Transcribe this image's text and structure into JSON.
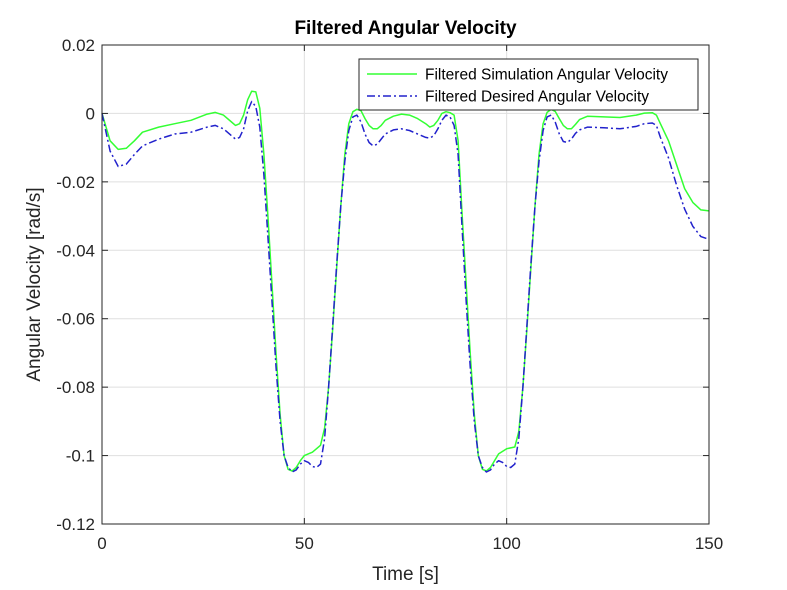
{
  "chart_data": {
    "type": "line",
    "title": "Filtered Angular Velocity",
    "xlabel": "Time [s]",
    "ylabel": "Angular Velocity [rad/s]",
    "xlim": [
      0,
      150
    ],
    "ylim": [
      -0.12,
      0.02
    ],
    "xticks": [
      0,
      50,
      100,
      150
    ],
    "xtick_labels": [
      "0",
      "50",
      "100",
      "150"
    ],
    "yticks": [
      0.02,
      0,
      -0.02,
      -0.04,
      -0.06,
      -0.08,
      -0.1,
      -0.12
    ],
    "ytick_labels": [
      "0.02",
      "0",
      "-0.02",
      "-0.04",
      "-0.06",
      "-0.08",
      "-0.1",
      "-0.12"
    ],
    "grid": true,
    "legend_position": "top-right",
    "series": [
      {
        "name": "Filtered Simulation Angular Velocity",
        "color": "#33ff33",
        "dash": "solid",
        "points": [
          [
            0,
            0
          ],
          [
            2,
            -0.008
          ],
          [
            4,
            -0.0105
          ],
          [
            6,
            -0.0102
          ],
          [
            8,
            -0.008
          ],
          [
            10,
            -0.0055
          ],
          [
            14,
            -0.004
          ],
          [
            18,
            -0.003
          ],
          [
            22,
            -0.002
          ],
          [
            26,
            -0.0002
          ],
          [
            28,
            0.0003
          ],
          [
            30,
            -0.0005
          ],
          [
            32,
            -0.0025
          ],
          [
            33,
            -0.0035
          ],
          [
            34,
            -0.003
          ],
          [
            35,
            -0.0005
          ],
          [
            36,
            0.004
          ],
          [
            37,
            0.0065
          ],
          [
            38,
            0.0063
          ],
          [
            39,
            0.0015
          ],
          [
            40,
            -0.012
          ],
          [
            41,
            -0.03
          ],
          [
            42,
            -0.05
          ],
          [
            43,
            -0.07
          ],
          [
            44,
            -0.088
          ],
          [
            45,
            -0.1
          ],
          [
            46,
            -0.104
          ],
          [
            47,
            -0.1045
          ],
          [
            48,
            -0.1035
          ],
          [
            49,
            -0.1015
          ],
          [
            50,
            -0.1
          ],
          [
            52,
            -0.099
          ],
          [
            54,
            -0.097
          ],
          [
            55,
            -0.092
          ],
          [
            56,
            -0.08
          ],
          [
            57,
            -0.063
          ],
          [
            58,
            -0.045
          ],
          [
            59,
            -0.027
          ],
          [
            60,
            -0.012
          ],
          [
            61,
            -0.003
          ],
          [
            62,
            0.0005
          ],
          [
            63,
            0.0012
          ],
          [
            64,
            0.0008
          ],
          [
            65,
            -0.0015
          ],
          [
            66,
            -0.0035
          ],
          [
            67,
            -0.0045
          ],
          [
            68,
            -0.0045
          ],
          [
            69,
            -0.0035
          ],
          [
            70,
            -0.002
          ],
          [
            72,
            -0.0008
          ],
          [
            74,
            -0.0002
          ],
          [
            76,
            -0.0005
          ],
          [
            78,
            -0.0015
          ],
          [
            80,
            -0.003
          ],
          [
            81,
            -0.004
          ],
          [
            82,
            -0.0035
          ],
          [
            83,
            -0.002
          ],
          [
            84,
            0.0
          ],
          [
            85,
            0.0005
          ],
          [
            86,
            0.0002
          ],
          [
            87,
            -0.0005
          ],
          [
            88,
            -0.008
          ],
          [
            89,
            -0.03
          ],
          [
            90,
            -0.05
          ],
          [
            91,
            -0.07
          ],
          [
            92,
            -0.088
          ],
          [
            93,
            -0.1
          ],
          [
            94,
            -0.104
          ],
          [
            95,
            -0.1045
          ],
          [
            96,
            -0.1035
          ],
          [
            97,
            -0.1015
          ],
          [
            98,
            -0.0995
          ],
          [
            100,
            -0.098
          ],
          [
            102,
            -0.0975
          ],
          [
            103,
            -0.093
          ],
          [
            104,
            -0.08
          ],
          [
            105,
            -0.063
          ],
          [
            106,
            -0.045
          ],
          [
            107,
            -0.027
          ],
          [
            108,
            -0.012
          ],
          [
            109,
            -0.003
          ],
          [
            110,
            0.0003
          ],
          [
            111,
            0.0012
          ],
          [
            112,
            0.0006
          ],
          [
            113,
            -0.0015
          ],
          [
            114,
            -0.0035
          ],
          [
            115,
            -0.0045
          ],
          [
            116,
            -0.0045
          ],
          [
            117,
            -0.0032
          ],
          [
            118,
            -0.0018
          ],
          [
            120,
            -0.0008
          ],
          [
            124,
            -0.001
          ],
          [
            128,
            -0.0012
          ],
          [
            132,
            -0.0005
          ],
          [
            134,
            0.0001
          ],
          [
            136,
            0.0002
          ],
          [
            137,
            -0.0005
          ],
          [
            138,
            -0.003
          ],
          [
            140,
            -0.008
          ],
          [
            142,
            -0.015
          ],
          [
            144,
            -0.022
          ],
          [
            146,
            -0.026
          ],
          [
            148,
            -0.0282
          ],
          [
            150,
            -0.0285
          ]
        ]
      },
      {
        "name": "Filtered Desired Angular Velocity",
        "color": "#2222cc",
        "dash": "dashdot",
        "points": [
          [
            0,
            0
          ],
          [
            2,
            -0.011
          ],
          [
            4,
            -0.0155
          ],
          [
            6,
            -0.0148
          ],
          [
            8,
            -0.012
          ],
          [
            10,
            -0.0095
          ],
          [
            14,
            -0.0075
          ],
          [
            18,
            -0.006
          ],
          [
            22,
            -0.0055
          ],
          [
            26,
            -0.004
          ],
          [
            28,
            -0.0035
          ],
          [
            30,
            -0.0045
          ],
          [
            32,
            -0.0065
          ],
          [
            33,
            -0.0075
          ],
          [
            34,
            -0.007
          ],
          [
            35,
            -0.0045
          ],
          [
            36,
            0.0008
          ],
          [
            37,
            0.0035
          ],
          [
            38,
            0.002
          ],
          [
            39,
            -0.004
          ],
          [
            40,
            -0.018
          ],
          [
            41,
            -0.036
          ],
          [
            42,
            -0.055
          ],
          [
            43,
            -0.074
          ],
          [
            44,
            -0.09
          ],
          [
            45,
            -0.1
          ],
          [
            46,
            -0.1035
          ],
          [
            47,
            -0.1048
          ],
          [
            48,
            -0.1042
          ],
          [
            49,
            -0.1025
          ],
          [
            50,
            -0.1015
          ],
          [
            51,
            -0.102
          ],
          [
            52,
            -0.1032
          ],
          [
            53,
            -0.1035
          ],
          [
            54,
            -0.1025
          ],
          [
            55,
            -0.095
          ],
          [
            56,
            -0.08
          ],
          [
            57,
            -0.062
          ],
          [
            58,
            -0.044
          ],
          [
            59,
            -0.027
          ],
          [
            60,
            -0.014
          ],
          [
            61,
            -0.005
          ],
          [
            62,
            -0.001
          ],
          [
            63,
            -0.0005
          ],
          [
            64,
            -0.0025
          ],
          [
            65,
            -0.006
          ],
          [
            66,
            -0.0085
          ],
          [
            67,
            -0.0095
          ],
          [
            68,
            -0.009
          ],
          [
            69,
            -0.0075
          ],
          [
            70,
            -0.006
          ],
          [
            72,
            -0.0048
          ],
          [
            74,
            -0.0045
          ],
          [
            76,
            -0.005
          ],
          [
            78,
            -0.006
          ],
          [
            80,
            -0.007
          ],
          [
            81,
            -0.0072
          ],
          [
            82,
            -0.0065
          ],
          [
            83,
            -0.0045
          ],
          [
            84,
            -0.002
          ],
          [
            85,
            -0.0005
          ],
          [
            86,
            -0.001
          ],
          [
            87,
            -0.0035
          ],
          [
            88,
            -0.012
          ],
          [
            89,
            -0.034
          ],
          [
            90,
            -0.055
          ],
          [
            91,
            -0.074
          ],
          [
            92,
            -0.09
          ],
          [
            93,
            -0.1
          ],
          [
            94,
            -0.1035
          ],
          [
            95,
            -0.1048
          ],
          [
            96,
            -0.1042
          ],
          [
            97,
            -0.1025
          ],
          [
            98,
            -0.1015
          ],
          [
            99,
            -0.102
          ],
          [
            100,
            -0.1032
          ],
          [
            101,
            -0.1035
          ],
          [
            102,
            -0.1025
          ],
          [
            103,
            -0.095
          ],
          [
            104,
            -0.08
          ],
          [
            105,
            -0.062
          ],
          [
            106,
            -0.044
          ],
          [
            107,
            -0.027
          ],
          [
            108,
            -0.014
          ],
          [
            109,
            -0.005
          ],
          [
            110,
            -0.001
          ],
          [
            111,
            -0.0005
          ],
          [
            112,
            -0.0025
          ],
          [
            113,
            -0.006
          ],
          [
            114,
            -0.0082
          ],
          [
            115,
            -0.0085
          ],
          [
            116,
            -0.0075
          ],
          [
            117,
            -0.0058
          ],
          [
            118,
            -0.0048
          ],
          [
            120,
            -0.004
          ],
          [
            124,
            -0.0042
          ],
          [
            128,
            -0.0045
          ],
          [
            132,
            -0.0038
          ],
          [
            134,
            -0.003
          ],
          [
            136,
            -0.0028
          ],
          [
            137,
            -0.0035
          ],
          [
            138,
            -0.007
          ],
          [
            140,
            -0.013
          ],
          [
            142,
            -0.021
          ],
          [
            144,
            -0.028
          ],
          [
            146,
            -0.033
          ],
          [
            148,
            -0.036
          ],
          [
            150,
            -0.0368
          ]
        ]
      }
    ]
  }
}
